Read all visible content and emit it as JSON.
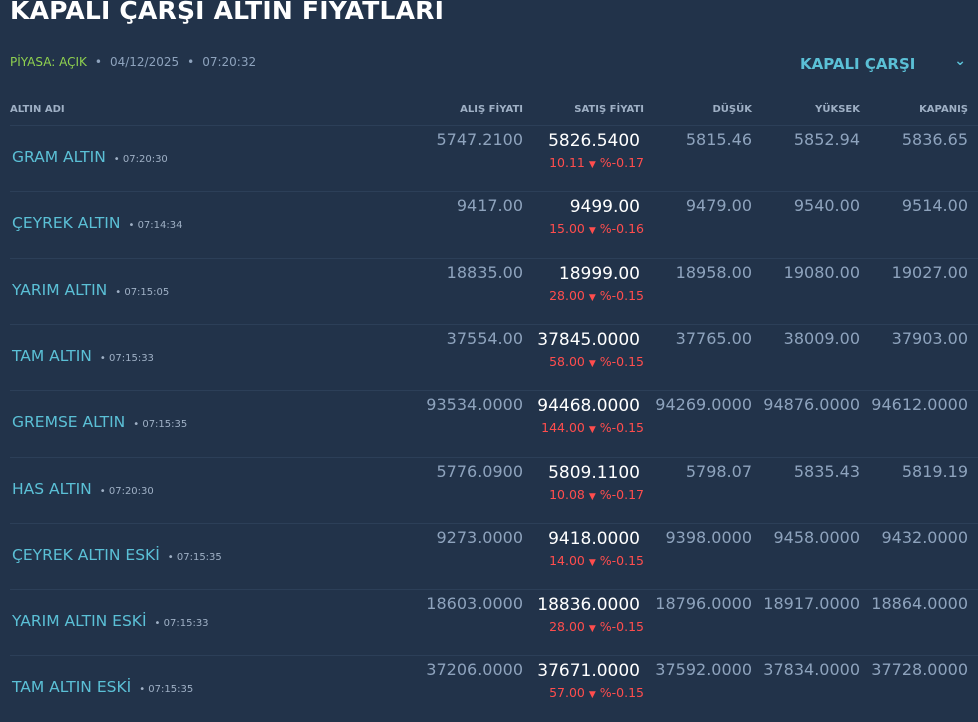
{
  "title": "KAPALI ÇARŞI ALTIN FIYATLARI",
  "status": {
    "market": "PİYASA: AÇIK",
    "date": "04/12/2025",
    "time": "07:20:32"
  },
  "market_select": {
    "value": "KAPALI ÇARŞI",
    "icon": "chevron-down-icon"
  },
  "headers": {
    "name": "ALTIN ADI",
    "buy": "ALIŞ FİYATI",
    "sell": "SATIŞ FİYATI",
    "low": "DÜŞÜK",
    "high": "YÜKSEK",
    "close": "KAPANIŞ"
  },
  "colors": {
    "background": "#22334a",
    "name": "#5bc0d6",
    "down": "#ff4d4d",
    "open": "#8fd14f"
  },
  "rows": [
    {
      "name": "GRAM ALTIN",
      "time": "07:20:30",
      "buy": "5747.2100",
      "sell": "5826.5400",
      "change": "10.11",
      "pct": "%-0.17",
      "low": "5815.46",
      "high": "5852.94",
      "close": "5836.65"
    },
    {
      "name": "ÇEYREK ALTIN",
      "time": "07:14:34",
      "buy": "9417.00",
      "sell": "9499.00",
      "change": "15.00",
      "pct": "%-0.16",
      "low": "9479.00",
      "high": "9540.00",
      "close": "9514.00"
    },
    {
      "name": "YARIM ALTIN",
      "time": "07:15:05",
      "buy": "18835.00",
      "sell": "18999.00",
      "change": "28.00",
      "pct": "%-0.15",
      "low": "18958.00",
      "high": "19080.00",
      "close": "19027.00"
    },
    {
      "name": "TAM ALTIN",
      "time": "07:15:33",
      "buy": "37554.00",
      "sell": "37845.0000",
      "change": "58.00",
      "pct": "%-0.15",
      "low": "37765.00",
      "high": "38009.00",
      "close": "37903.00"
    },
    {
      "name": "GREMSE ALTIN",
      "time": "07:15:35",
      "buy": "93534.0000",
      "sell": "94468.0000",
      "change": "144.00",
      "pct": "%-0.15",
      "low": "94269.0000",
      "high": "94876.0000",
      "close": "94612.0000"
    },
    {
      "name": "HAS ALTIN",
      "time": "07:20:30",
      "buy": "5776.0900",
      "sell": "5809.1100",
      "change": "10.08",
      "pct": "%-0.17",
      "low": "5798.07",
      "high": "5835.43",
      "close": "5819.19"
    },
    {
      "name": "ÇEYREK ALTIN ESKİ",
      "time": "07:15:35",
      "buy": "9273.0000",
      "sell": "9418.0000",
      "change": "14.00",
      "pct": "%-0.15",
      "low": "9398.0000",
      "high": "9458.0000",
      "close": "9432.0000"
    },
    {
      "name": "YARIM ALTIN ESKİ",
      "time": "07:15:33",
      "buy": "18603.0000",
      "sell": "18836.0000",
      "change": "28.00",
      "pct": "%-0.15",
      "low": "18796.0000",
      "high": "18917.0000",
      "close": "18864.0000"
    },
    {
      "name": "TAM ALTIN ESKİ",
      "time": "07:15:35",
      "buy": "37206.0000",
      "sell": "37671.0000",
      "change": "57.00",
      "pct": "%-0.15",
      "low": "37592.0000",
      "high": "37834.0000",
      "close": "37728.0000"
    }
  ]
}
